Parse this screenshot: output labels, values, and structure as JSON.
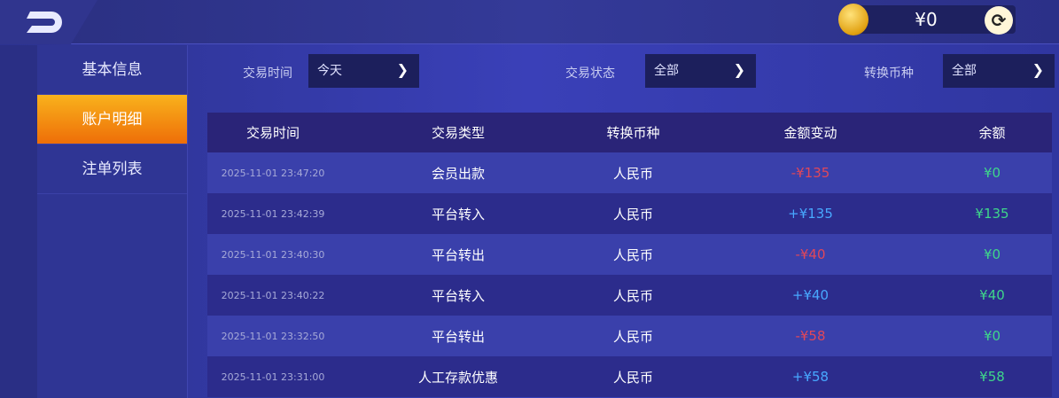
{
  "header": {
    "back_icon": "back-arrow-icon",
    "wallet_balance": "¥0",
    "coin_icon": "gold-coin-icon",
    "refresh_icon": "refresh-icon"
  },
  "sidebar": {
    "items": [
      {
        "label": "基本信息"
      },
      {
        "label": "账户明细",
        "active": true
      },
      {
        "label": "注单列表"
      }
    ]
  },
  "filters": [
    {
      "label": "交易时间",
      "value": "今天"
    },
    {
      "label": "交易状态",
      "value": "全部"
    },
    {
      "label": "转换币种",
      "value": "全部"
    }
  ],
  "table": {
    "columns": [
      "交易时间",
      "交易类型",
      "转换币种",
      "金额变动",
      "余额"
    ],
    "rows": [
      {
        "time": "2025-11-01 23:47:20",
        "type": "会员出款",
        "currency": "人民币",
        "change": "-¥135",
        "balance": "¥0"
      },
      {
        "time": "2025-11-01 23:42:39",
        "type": "平台转入",
        "currency": "人民币",
        "change": "+¥135",
        "balance": "¥135"
      },
      {
        "time": "2025-11-01 23:40:30",
        "type": "平台转出",
        "currency": "人民币",
        "change": "-¥40",
        "balance": "¥0"
      },
      {
        "time": "2025-11-01 23:40:22",
        "type": "平台转入",
        "currency": "人民币",
        "change": "+¥40",
        "balance": "¥40"
      },
      {
        "time": "2025-11-01 23:32:50",
        "type": "平台转出",
        "currency": "人民币",
        "change": "-¥58",
        "balance": "¥0"
      },
      {
        "time": "2025-11-01 23:31:00",
        "type": "人工存款优惠",
        "currency": "人民币",
        "change": "+¥58",
        "balance": "¥58"
      }
    ]
  },
  "colors": {
    "active_tab": "#f5960f",
    "negative": "#e0475a",
    "positive": "#48a8ff",
    "balance": "#3fd68a"
  }
}
